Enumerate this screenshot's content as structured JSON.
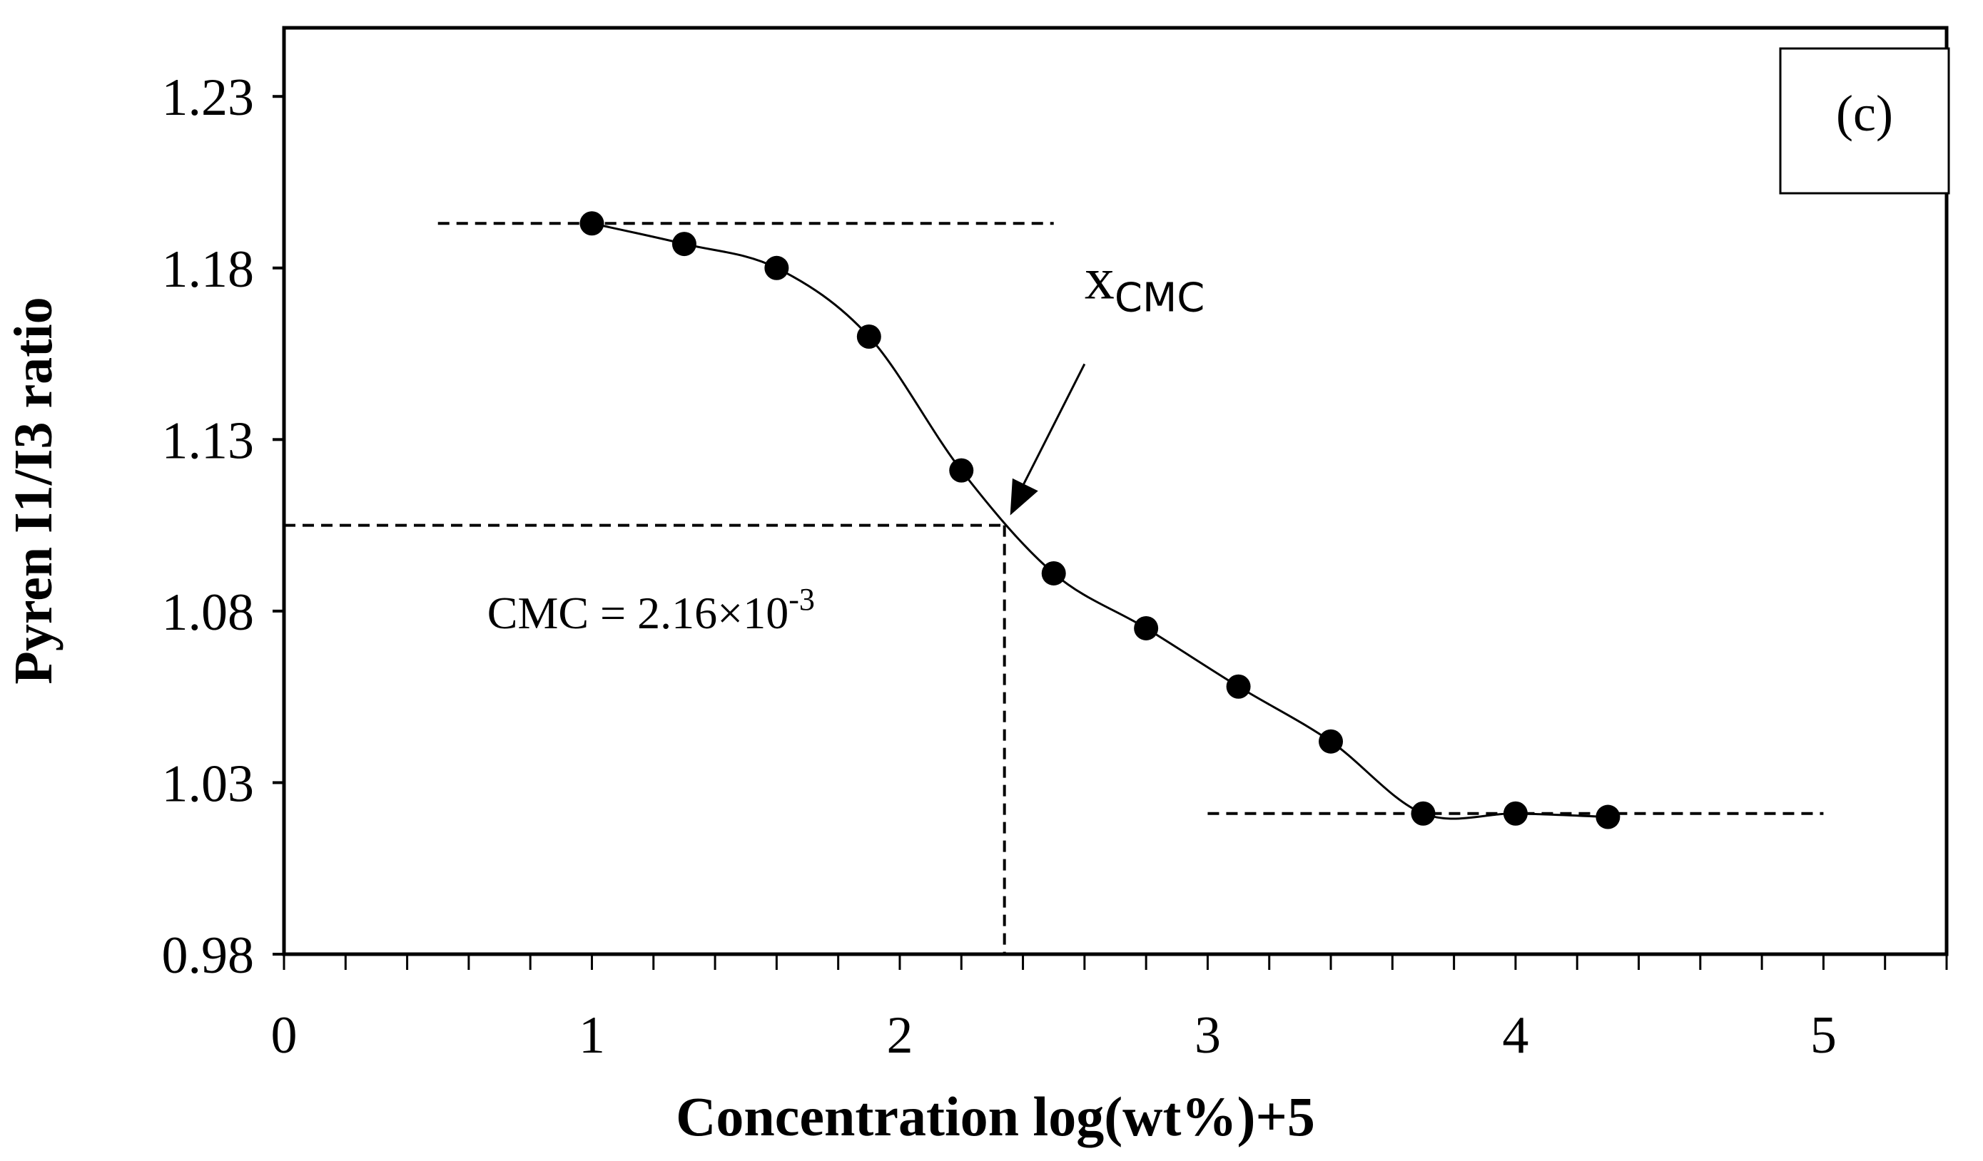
{
  "chart_data": {
    "type": "scatter",
    "panel_label": "(c)",
    "xlabel": "Concentration log(wt%)+5",
    "ylabel": "Pyren I1/I3 ratio",
    "xlim": [
      0,
      5.4
    ],
    "ylim": [
      0.98,
      1.25
    ],
    "x_ticks": [
      "0",
      "1",
      "2",
      "3",
      "4",
      "5"
    ],
    "x_tick_values": [
      0,
      1,
      2,
      3,
      4,
      5
    ],
    "x_minor_step": 0.2,
    "y_ticks": [
      "0.98",
      "1.03",
      "1.08",
      "1.13",
      "1.18",
      "1.23"
    ],
    "y_tick_values": [
      0.98,
      1.03,
      1.08,
      1.13,
      1.18,
      1.23
    ],
    "series": [
      {
        "name": "I1/I3",
        "x": [
          1.0,
          1.3,
          1.6,
          1.9,
          2.2,
          2.5,
          2.8,
          3.1,
          3.4,
          3.7,
          4.0,
          4.3
        ],
        "y": [
          1.193,
          1.187,
          1.18,
          1.16,
          1.121,
          1.091,
          1.075,
          1.058,
          1.042,
          1.021,
          1.021,
          1.02
        ]
      }
    ],
    "reference_lines": {
      "upper_plateau": {
        "x": [
          0.5,
          2.5
        ],
        "y": 1.193
      },
      "lower_plateau": {
        "x": [
          3.0,
          5.0
        ],
        "y": 1.021
      },
      "cmc_x": 2.34,
      "cmc_y": 1.105
    },
    "annotations": {
      "arrow_label_main": "x",
      "arrow_label_sub": "CMC",
      "arrow_from": {
        "x": 2.6,
        "y": 1.152
      },
      "cmc_text_main": "CMC = 2.16×10",
      "cmc_text_sup": "-3",
      "cmc_text_pos": {
        "x": 0.66,
        "y": 1.075
      }
    }
  }
}
